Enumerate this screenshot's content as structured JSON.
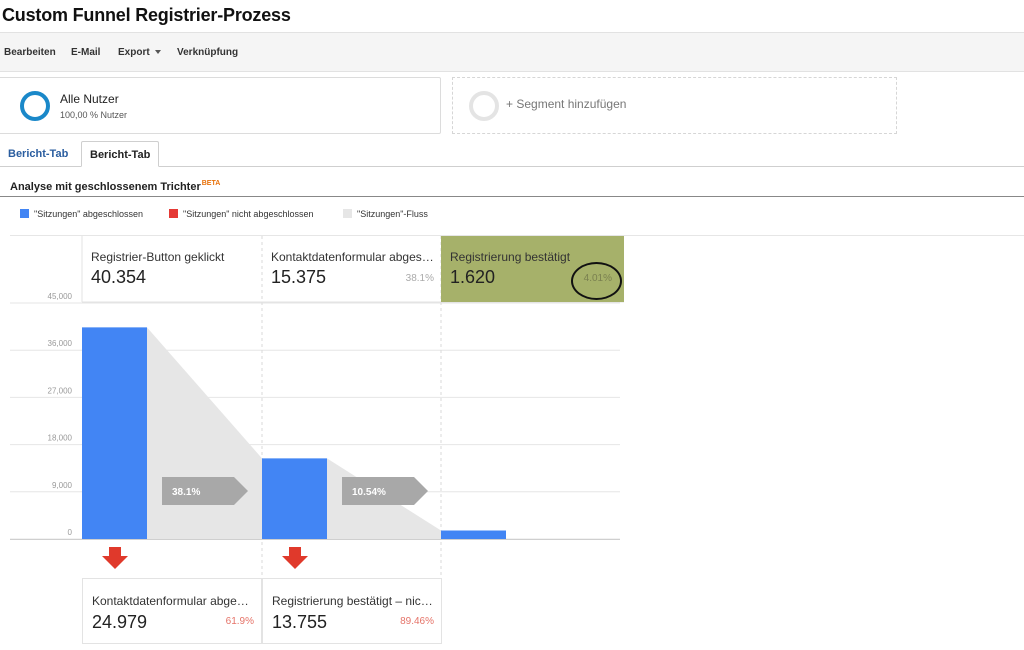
{
  "page": {
    "title": "Custom Funnel Registrier-Prozess"
  },
  "toolbar": {
    "edit": "Bearbeiten",
    "email": "E-Mail",
    "export": "Export",
    "shortcut": "Verknüpfung"
  },
  "segments": {
    "primary": {
      "name": "Alle Nutzer",
      "sub": "100,00 % Nutzer",
      "color": "#1a88c9"
    },
    "add_label": "+ Segment hinzufügen"
  },
  "tabs": [
    {
      "label": "Bericht-Tab"
    },
    {
      "label": "Bericht-Tab"
    }
  ],
  "section": {
    "title": "Analyse mit geschlossenem Trichter",
    "badge": "BETA"
  },
  "legend": [
    {
      "label": "\"Sitzungen\" abgeschlossen",
      "color": "#4285f4"
    },
    {
      "label": "\"Sitzungen\" nicht abgeschlossen",
      "color": "#e53935"
    },
    {
      "label": "\"Sitzungen\"-Fluss",
      "color": "#e6e6e6"
    }
  ],
  "stages": [
    {
      "name": "Registrier-Button geklickt",
      "value": "40.354",
      "pct": ""
    },
    {
      "name": "Kontaktdatenformular abgeschickt",
      "value": "15.375",
      "pct": "38.1%"
    },
    {
      "name": "Registrierung bestätigt",
      "value": "1.620",
      "pct": "4.01%"
    }
  ],
  "drops": [
    {
      "name": "Kontaktdatenformular abgeschickt",
      "value": "24.979",
      "pct": "61.9%"
    },
    {
      "name": "Registrierung bestätigt – nicht abgeschlossen",
      "value": "13.755",
      "pct": "89.46%"
    }
  ],
  "chart_data": {
    "type": "bar",
    "categories": [
      "Registrier-Button geklickt",
      "Kontaktdatenformular abgeschickt",
      "Registrierung bestätigt"
    ],
    "values": [
      40354,
      15375,
      1620
    ],
    "ylim": [
      0,
      45000
    ],
    "y_ticks": [
      "45,000",
      "36,000",
      "27,000",
      "18,000",
      "9,000",
      "0"
    ],
    "y_tick_values": [
      45000,
      36000,
      27000,
      18000,
      9000,
      0
    ],
    "flow_labels": [
      "38.1%",
      "10.54%"
    ],
    "grid": true,
    "colors": {
      "bar": "#4285f4",
      "flow": "#e6e6e6",
      "arrow": "#a8a8a8",
      "drop_arrow": "#e0392b"
    }
  }
}
